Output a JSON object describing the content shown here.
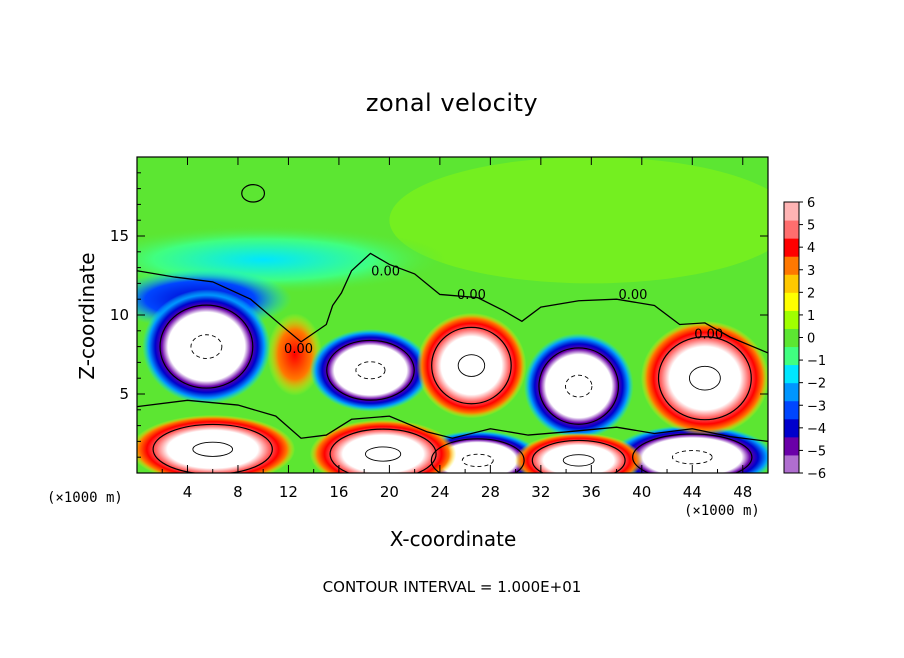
{
  "chart_data": {
    "type": "heatmap",
    "title": "zonal velocity",
    "xlabel": "X-coordinate",
    "ylabel": "Z-coordinate",
    "x_unit": "(×1000 m)",
    "xlim": [
      0,
      50
    ],
    "ylim": [
      0,
      20
    ],
    "x_ticks": [
      4,
      8,
      12,
      16,
      20,
      24,
      28,
      32,
      36,
      40,
      44,
      48
    ],
    "y_ticks": [
      5,
      10,
      15
    ],
    "colorbar": {
      "min": -6,
      "max": 6,
      "ticks": [
        6,
        5,
        4,
        3,
        2,
        1,
        0,
        -1,
        -2,
        -3,
        -4,
        -5,
        -6
      ],
      "colors": [
        "#b06ed0",
        "#6a00a8",
        "#0000cc",
        "#0046ff",
        "#0096ff",
        "#00e6ff",
        "#40ff80",
        "#5ce632",
        "#a0ff00",
        "#ffff00",
        "#ffc800",
        "#ff7800",
        "#ff0000",
        "#ff6e6e",
        "#ffb4b4"
      ]
    },
    "background_color": "#5ce632",
    "out_of_range_color": "#ffffff",
    "contour_labels": [
      "0.00",
      "0.00",
      "0.00",
      "0.00",
      "0.00"
    ],
    "contour_interval_text": "CONTOUR INTERVAL = 1.000E+01",
    "features": [
      {
        "kind": "neg_cell",
        "x": 5.5,
        "z": 8.0,
        "rx": 3.5,
        "rz": 2.5
      },
      {
        "kind": "neg_cell",
        "x": 18.5,
        "z": 6.5,
        "rx": 3.3,
        "rz": 1.8
      },
      {
        "kind": "pos_cell",
        "x": 26.5,
        "z": 6.8,
        "rx": 3.0,
        "rz": 2.3
      },
      {
        "kind": "neg_cell",
        "x": 35.0,
        "z": 5.5,
        "rx": 3.0,
        "rz": 2.3
      },
      {
        "kind": "pos_cell",
        "x": 45.0,
        "z": 6.0,
        "rx": 3.5,
        "rz": 2.5
      },
      {
        "kind": "pos_cell",
        "x": 6.0,
        "z": 1.5,
        "rx": 4.5,
        "rz": 1.5
      },
      {
        "kind": "pos_cell",
        "x": 19.5,
        "z": 1.2,
        "rx": 4.0,
        "rz": 1.5
      },
      {
        "kind": "neg_cell",
        "x": 27.0,
        "z": 0.8,
        "rx": 3.5,
        "rz": 1.3
      },
      {
        "kind": "pos_cell",
        "x": 35.0,
        "z": 0.8,
        "rx": 3.5,
        "rz": 1.2
      },
      {
        "kind": "neg_cell",
        "x": 44.0,
        "z": 1.0,
        "rx": 4.5,
        "rz": 1.4
      },
      {
        "kind": "pos_streak",
        "x": 12.5,
        "z": 7.5,
        "rx": 1.5,
        "rz": 1.8
      },
      {
        "kind": "neg_band",
        "x": 5.0,
        "z": 11.0,
        "rx": 5.0,
        "rz": 1.3
      },
      {
        "kind": "cyan_band",
        "x": 10.0,
        "z": 13.5,
        "rx": 10.0,
        "rz": 1.5
      }
    ]
  }
}
